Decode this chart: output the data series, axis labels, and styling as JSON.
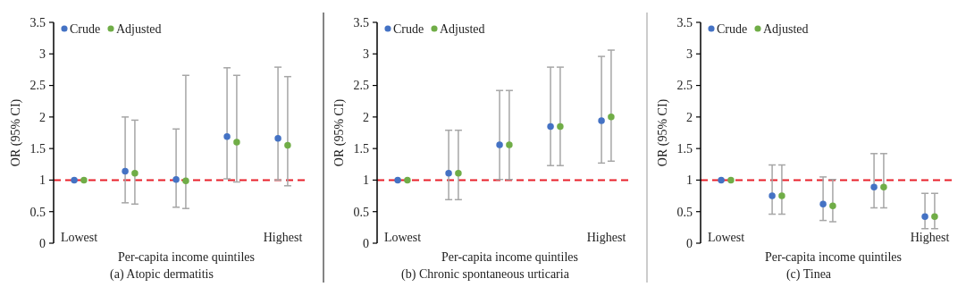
{
  "chart_data": [
    {
      "type": "scatter",
      "title": "(a) Atopic dermatitis",
      "xlabel": "Per-capita income quintiles",
      "ylabel": "OR (95% CI)",
      "categories": [
        "Lowest",
        null,
        null,
        null,
        "Highest"
      ],
      "series": [
        {
          "name": "Crude",
          "color": "#4472c4",
          "values": [
            1,
            1.14,
            1.01,
            1.69,
            1.66
          ],
          "errors": [
            null,
            [
              0.64,
              2.0
            ],
            [
              0.57,
              1.81
            ],
            [
              1.02,
              2.78
            ],
            [
              1.0,
              2.79
            ]
          ]
        },
        {
          "name": "Adjusted",
          "color": "#70ad47",
          "values": [
            1,
            1.11,
            0.99,
            1.6,
            1.55
          ],
          "errors": [
            null,
            [
              0.62,
              1.95
            ],
            [
              0.55,
              2.66
            ],
            [
              0.97,
              2.66
            ],
            [
              0.91,
              2.64
            ]
          ]
        }
      ],
      "ylim": [
        0,
        3.5
      ],
      "yticks": [
        0,
        0.5,
        1,
        1.5,
        2,
        2.5,
        3,
        3.5
      ],
      "ref_lines": [
        {
          "axis": "y",
          "value": 1,
          "color": "#e8202a",
          "line_style": "dashed"
        }
      ],
      "legend": "top left",
      "marker": "circle"
    },
    {
      "type": "scatter",
      "title": "(b) Chronic spontaneous urticaria",
      "xlabel": "Per-capita income quintiles",
      "ylabel": "OR (95% CI)",
      "categories": [
        "Lowest",
        null,
        null,
        null,
        "Highest"
      ],
      "series": [
        {
          "name": "Crude",
          "color": "#4472c4",
          "values": [
            1,
            1.11,
            1.56,
            1.85,
            1.94
          ],
          "errors": [
            null,
            [
              0.69,
              1.79
            ],
            [
              1.01,
              2.42
            ],
            [
              1.23,
              2.79
            ],
            [
              1.27,
              2.96
            ]
          ]
        },
        {
          "name": "Adjusted",
          "color": "#70ad47",
          "values": [
            1,
            1.11,
            1.56,
            1.85,
            2.0
          ],
          "errors": [
            null,
            [
              0.69,
              1.79
            ],
            [
              1.01,
              2.42
            ],
            [
              1.23,
              2.79
            ],
            [
              1.3,
              3.06
            ]
          ]
        }
      ],
      "ylim": [
        0,
        3.5
      ],
      "yticks": [
        0,
        0.5,
        1,
        1.5,
        2,
        2.5,
        3,
        3.5
      ],
      "ref_lines": [
        {
          "axis": "y",
          "value": 1,
          "color": "#e8202a",
          "line_style": "dashed"
        }
      ],
      "legend": "top left",
      "marker": "circle"
    },
    {
      "type": "scatter",
      "title": "(c) Tinea",
      "xlabel": "Per-capita income quintiles",
      "ylabel": "OR (95% CI)",
      "categories": [
        "Lowest",
        null,
        null,
        null,
        "Highest"
      ],
      "series": [
        {
          "name": "Crude",
          "color": "#4472c4",
          "values": [
            1,
            0.75,
            0.62,
            0.89,
            0.42
          ],
          "errors": [
            null,
            [
              0.46,
              1.24
            ],
            [
              0.36,
              1.05
            ],
            [
              0.56,
              1.42
            ],
            [
              0.23,
              0.79
            ]
          ]
        },
        {
          "name": "Adjusted",
          "color": "#70ad47",
          "values": [
            1,
            0.75,
            0.59,
            0.89,
            0.42
          ],
          "errors": [
            null,
            [
              0.46,
              1.24
            ],
            [
              0.34,
              1.01
            ],
            [
              0.56,
              1.42
            ],
            [
              0.23,
              0.79
            ]
          ]
        }
      ],
      "ylim": [
        0,
        3.5
      ],
      "yticks": [
        0,
        0.5,
        1,
        1.5,
        2,
        2.5,
        3,
        3.5
      ],
      "ref_lines": [
        {
          "axis": "y",
          "value": 1,
          "color": "#e8202a",
          "line_style": "dashed"
        }
      ],
      "legend": "top left",
      "marker": "circle"
    }
  ]
}
